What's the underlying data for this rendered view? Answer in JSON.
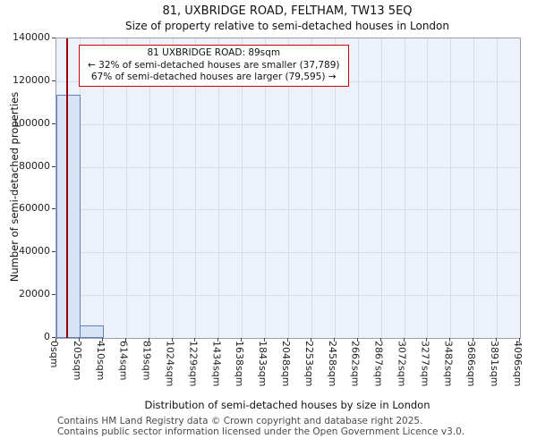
{
  "title": "81, UXBRIDGE ROAD, FELTHAM, TW13 5EQ",
  "subtitle": "Size of property relative to semi-detached houses in London",
  "annotation": {
    "line1": "81 UXBRIDGE ROAD: 89sqm",
    "line2": "← 32% of semi-detached houses are smaller (37,789)",
    "line3": "67% of semi-detached houses are larger (79,595) →"
  },
  "footer": {
    "line1": "Contains HM Land Registry data © Crown copyright and database right 2025.",
    "line2": "Contains public sector information licensed under the Open Government Licence v3.0."
  },
  "chart_data": {
    "type": "bar",
    "title": "81, UXBRIDGE ROAD, FELTHAM, TW13 5EQ",
    "subtitle": "Size of property relative to semi-detached houses in London",
    "xlabel": "Distribution of semi-detached houses by size in London",
    "ylabel": "Number of semi-detached properties",
    "categories": [
      "0sqm",
      "205sqm",
      "410sqm",
      "614sqm",
      "819sqm",
      "1024sqm",
      "1229sqm",
      "1434sqm",
      "1638sqm",
      "1843sqm",
      "2048sqm",
      "2253sqm",
      "2458sqm",
      "2662sqm",
      "2867sqm",
      "3072sqm",
      "3277sqm",
      "3482sqm",
      "3686sqm",
      "3891sqm",
      "4096sqm"
    ],
    "values": [
      113600,
      5800,
      0,
      0,
      0,
      0,
      0,
      0,
      0,
      0,
      0,
      0,
      0,
      0,
      0,
      0,
      0,
      0,
      0,
      0
    ],
    "ylim": [
      0,
      140000
    ],
    "yticks": [
      0,
      20000,
      40000,
      60000,
      80000,
      100000,
      120000,
      140000
    ],
    "grid": true,
    "marker": {
      "label": "81 UXBRIDGE ROAD",
      "value_sqm": 89,
      "x_max_sqm": 4096,
      "color": "#990000"
    },
    "smaller_count": 37789,
    "smaller_pct": 32,
    "larger_count": 79595,
    "larger_pct": 67,
    "colors": {
      "bar_fill": "#d9e3f6",
      "bar_border": "#5f82c0",
      "plot_bg": "#edf1fa",
      "grid": "#d5dcee",
      "marker": "#990000",
      "annotation_border": "#cc0000"
    }
  }
}
